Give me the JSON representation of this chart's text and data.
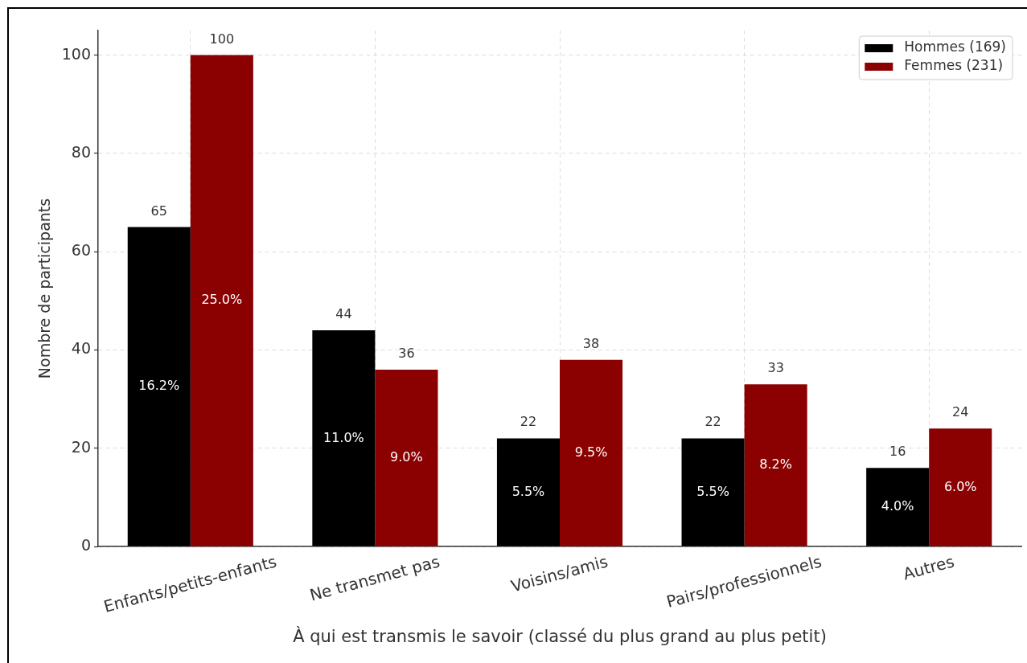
{
  "chart_data": {
    "type": "bar",
    "xlabel": "À qui est transmis le savoir (classé du plus grand au plus petit)",
    "ylabel": "Nombre de participants",
    "categories": [
      "Enfants/petits-enfants",
      "Ne transmet pas",
      "Voisins/amis",
      "Pairs/professionnels",
      "Autres"
    ],
    "series": [
      {
        "name": "Hommes (169)",
        "color": "#000000",
        "values": [
          65,
          44,
          22,
          22,
          16
        ]
      },
      {
        "name": "Femmes (231)",
        "color": "#8b0000",
        "values": [
          100,
          36,
          38,
          33,
          24
        ]
      }
    ],
    "ylim": [
      0,
      105
    ],
    "yticks": [
      0,
      20,
      40,
      60,
      80,
      100
    ],
    "grid": true,
    "legend": "top right",
    "data_labels": true,
    "annotations": [
      {
        "text": "16.2%",
        "x": "Enfants/petits-enfants",
        "y": 32.5
      },
      {
        "text": "25.0%",
        "x": "Enfants/petits-enfants",
        "y": 50
      },
      {
        "text": "11.0%",
        "x": "Ne transmet pas",
        "y": 22
      },
      {
        "text": "9.0%",
        "x": "Ne transmet pas",
        "y": 18
      },
      {
        "text": "5.5%",
        "x": "Voisins/amis",
        "y": 11
      },
      {
        "text": "9.5%",
        "x": "Voisins/amis",
        "y": 19
      },
      {
        "text": "5.5%",
        "x": "Pairs/professionnels",
        "y": 11
      },
      {
        "text": "8.2%",
        "x": "Pairs/professionnels",
        "y": 16.5
      },
      {
        "text": "4.0%",
        "x": "Autres",
        "y": 8
      },
      {
        "text": "6.0%",
        "x": "Autres",
        "y": 12
      }
    ]
  }
}
